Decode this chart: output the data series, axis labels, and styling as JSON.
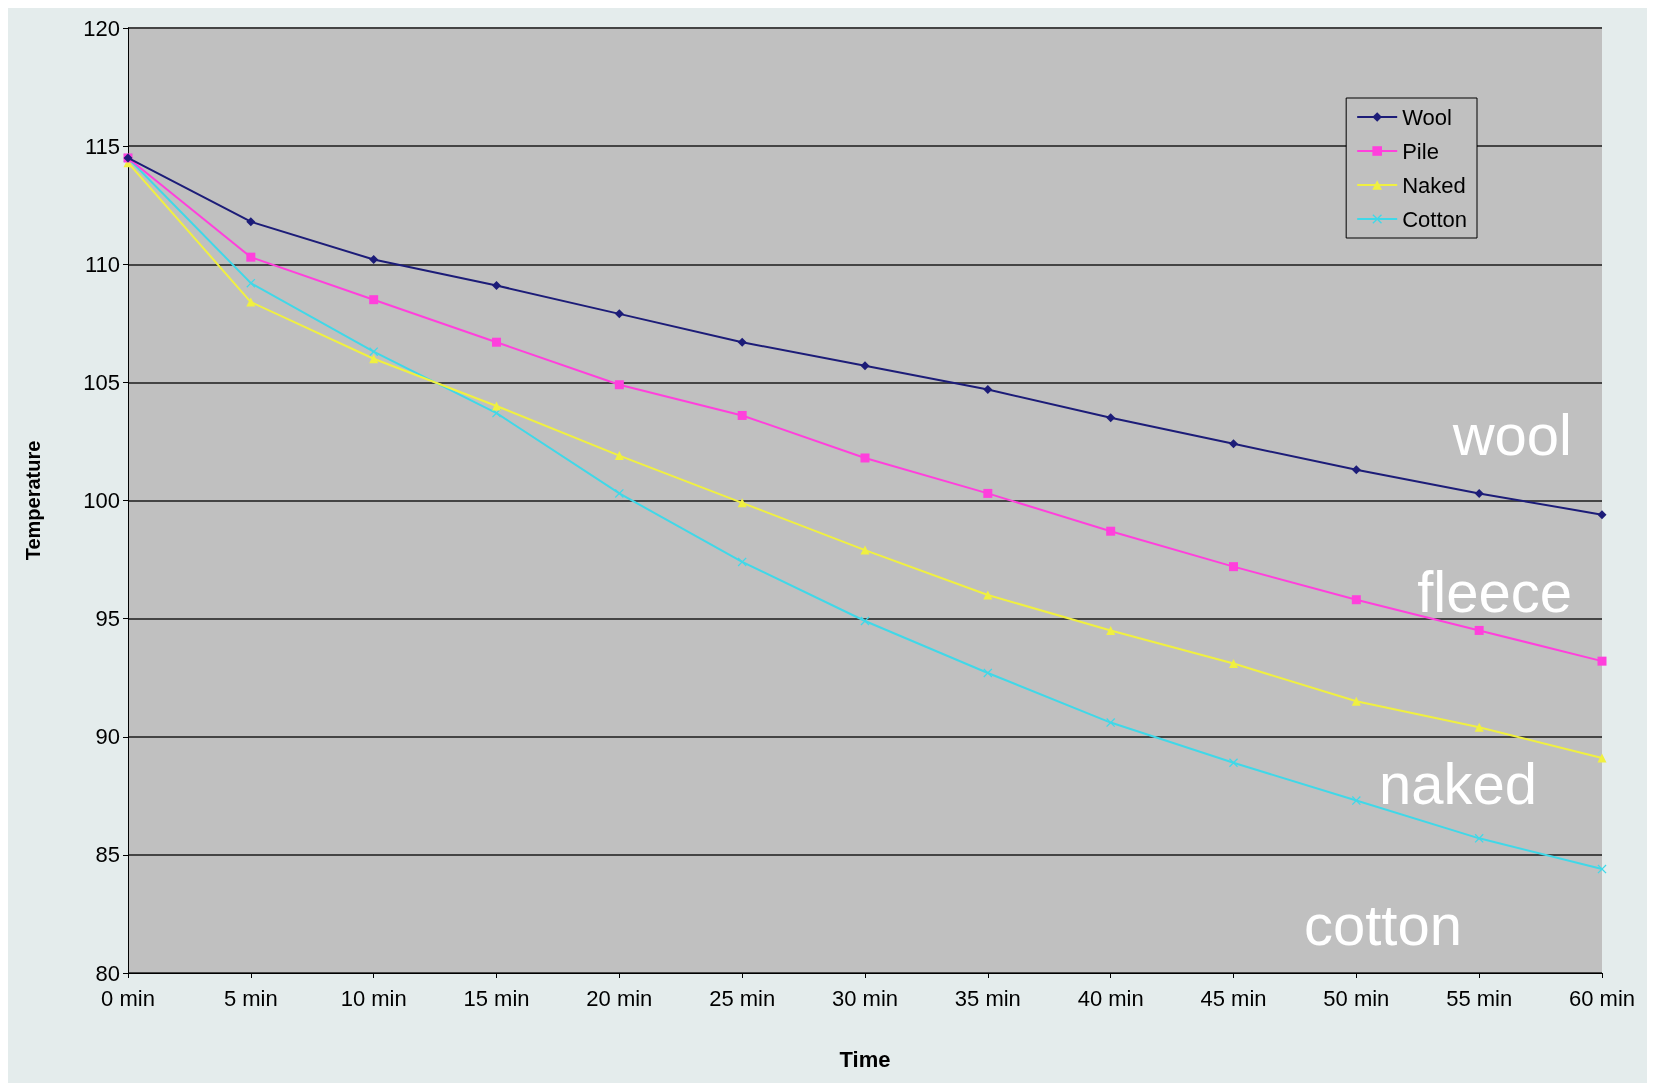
{
  "chart_data": {
    "type": "line",
    "xlabel": "Time",
    "ylabel": "Temperature",
    "categories": [
      "0 min",
      "5 min",
      "10 min",
      "15 min",
      "20 min",
      "25 min",
      "30 min",
      "35 min",
      "40 min",
      "45 min",
      "50 min",
      "55 min",
      "60 min"
    ],
    "series": [
      {
        "name": "Wool",
        "color": "#1c1c78",
        "marker": "diamond",
        "values": [
          114.5,
          111.8,
          110.2,
          109.1,
          107.9,
          106.7,
          105.7,
          104.7,
          103.5,
          102.4,
          101.3,
          100.3,
          99.4
        ]
      },
      {
        "name": "Pile",
        "color": "#ff40dc",
        "marker": "square",
        "values": [
          114.5,
          110.3,
          108.5,
          106.7,
          104.9,
          103.6,
          101.8,
          100.3,
          98.7,
          97.2,
          95.8,
          94.5,
          93.2
        ]
      },
      {
        "name": "Naked",
        "color": "#f0f040",
        "marker": "triangle",
        "values": [
          114.3,
          108.4,
          106.0,
          104.0,
          101.9,
          99.9,
          97.9,
          96.0,
          94.5,
          93.1,
          91.5,
          90.4,
          89.1
        ]
      },
      {
        "name": "Cotton",
        "color": "#40d8e8",
        "marker": "cross",
        "values": [
          114.5,
          109.2,
          106.3,
          103.7,
          100.3,
          97.4,
          94.9,
          92.7,
          90.6,
          88.9,
          87.3,
          85.7,
          84.4
        ]
      }
    ],
    "ylim": [
      80,
      120
    ],
    "yticks": [
      80,
      85,
      90,
      95,
      100,
      105,
      110,
      115,
      120
    ],
    "grid": "y",
    "legend": "top right",
    "line_style": "solid",
    "annotations": [
      "wool",
      "fleece",
      "naked",
      "cotton"
    ]
  }
}
